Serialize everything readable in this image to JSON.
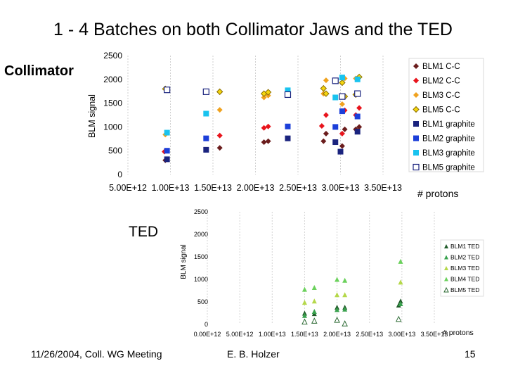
{
  "slide": {
    "title": "1 - 4 Batches on both Collimator Jaws and the TED",
    "collimator_label": "Collimator",
    "ted_label": "TED",
    "footer": {
      "date": "11/26/2004, Coll. WG Meeting",
      "author": "E. B. Holzer",
      "page": "15"
    }
  },
  "colors": {
    "dark_red": "#6b1d1d",
    "red": "#e8141c",
    "orange": "#f0a21e",
    "yellow": "#f5d60f",
    "navy": "#1a237e",
    "blue": "#1c3fd9",
    "cyan": "#19c3ef",
    "white": "#ffffff",
    "ted_dark": "#215c2a",
    "ted_mid": "#38a14d",
    "ted_light": "#b5d84a",
    "ted_bright": "#6bd15c",
    "ted_pale": "#a6bfa0"
  },
  "chart_data": [
    {
      "type": "scatter",
      "title": "",
      "xlabel": "# protons",
      "ylabel": "BLM signal",
      "xlim": [
        5000000000000.0,
        35000000000000.0
      ],
      "ylim": [
        0,
        2500
      ],
      "x_ticks": [
        "5.00E+12",
        "1.00E+13",
        "1.50E+13",
        "2.00E+13",
        "2.50E+13",
        "3.00E+13",
        "3.50E+13"
      ],
      "y_ticks": [
        "0",
        "500",
        "1000",
        "1500",
        "2000",
        "2500"
      ],
      "legend_position": "right",
      "series": [
        {
          "name": "BLM1 C-C",
          "marker": "diamond",
          "color": "#6b1d1d",
          "points": [
            [
              9400000000000.0,
              300
            ],
            [
              15800000000000.0,
              560
            ],
            [
              21000000000000.0,
              680
            ],
            [
              21500000000000.0,
              700
            ],
            [
              28000000000000.0,
              700
            ],
            [
              28300000000000.0,
              860
            ],
            [
              30200000000000.0,
              600
            ],
            [
              30500000000000.0,
              950
            ],
            [
              31800000000000.0,
              950
            ],
            [
              32200000000000.0,
              1000
            ]
          ]
        },
        {
          "name": "BLM2 C-C",
          "marker": "diamond",
          "color": "#e8141c",
          "points": [
            [
              9300000000000.0,
              480
            ],
            [
              15800000000000.0,
              820
            ],
            [
              21000000000000.0,
              980
            ],
            [
              21500000000000.0,
              1010
            ],
            [
              27800000000000.0,
              1020
            ],
            [
              28300000000000.0,
              1250
            ],
            [
              30200000000000.0,
              860
            ],
            [
              30500000000000.0,
              1350
            ],
            [
              31800000000000.0,
              1250
            ],
            [
              32200000000000.0,
              1400
            ]
          ]
        },
        {
          "name": "BLM3 C-C",
          "marker": "diamond",
          "color": "#f0a21e",
          "points": [
            [
              9400000000000.0,
              840
            ],
            [
              15800000000000.0,
              1360
            ],
            [
              21000000000000.0,
              1620
            ],
            [
              21500000000000.0,
              1660
            ],
            [
              28000000000000.0,
              1700
            ],
            [
              28300000000000.0,
              1980
            ],
            [
              30200000000000.0,
              1480
            ],
            [
              30500000000000.0,
              2020
            ],
            [
              31800000000000.0,
              2020
            ],
            [
              32200000000000.0,
              2050
            ]
          ]
        },
        {
          "name": "BLM5 C-C",
          "marker": "diamond-outline",
          "color": "#f5d60f",
          "points": [
            [
              9400000000000.0,
              1800
            ],
            [
              15800000000000.0,
              1740
            ],
            [
              21000000000000.0,
              1700
            ],
            [
              21500000000000.0,
              1730
            ],
            [
              28000000000000.0,
              1810
            ],
            [
              28300000000000.0,
              1700
            ],
            [
              30200000000000.0,
              1930
            ],
            [
              30500000000000.0,
              1640
            ],
            [
              31800000000000.0,
              1680
            ],
            [
              32200000000000.0,
              2050
            ]
          ]
        }
      ]
    },
    {
      "type": "scatter",
      "title": "",
      "xlabel": "",
      "ylabel": "",
      "xlim": [
        5000000000000.0,
        35000000000000.0
      ],
      "ylim": [
        0,
        2500
      ],
      "legend_position": "right",
      "series": [
        {
          "name": "BLM1 graphite",
          "marker": "square",
          "color": "#1a237e",
          "points": [
            [
              9600000000000.0,
              320
            ],
            [
              14200000000000.0,
              520
            ],
            [
              23800000000000.0,
              760
            ],
            [
              29400000000000.0,
              680
            ],
            [
              30000000000000.0,
              480
            ],
            [
              32000000000000.0,
              900
            ]
          ]
        },
        {
          "name": "BLM2 graphite",
          "marker": "square",
          "color": "#1c3fd9",
          "points": [
            [
              9600000000000.0,
              500
            ],
            [
              14200000000000.0,
              760
            ],
            [
              23800000000000.0,
              1010
            ],
            [
              29400000000000.0,
              1000
            ],
            [
              30200000000000.0,
              1330
            ],
            [
              32000000000000.0,
              1220
            ]
          ]
        },
        {
          "name": "BLM3 graphite",
          "marker": "square",
          "color": "#19c3ef",
          "points": [
            [
              9600000000000.0,
              880
            ],
            [
              14200000000000.0,
              1280
            ],
            [
              23800000000000.0,
              1770
            ],
            [
              29400000000000.0,
              1620
            ],
            [
              30200000000000.0,
              2040
            ],
            [
              32000000000000.0,
              2000
            ]
          ]
        },
        {
          "name": "BLM5 graphite",
          "marker": "square-outline",
          "color": "#1a237e",
          "points": [
            [
              9600000000000.0,
              1780
            ],
            [
              14200000000000.0,
              1740
            ],
            [
              23800000000000.0,
              1680
            ],
            [
              29400000000000.0,
              1970
            ],
            [
              30200000000000.0,
              1640
            ],
            [
              32000000000000.0,
              1700
            ]
          ]
        }
      ]
    },
    {
      "type": "scatter",
      "title": "",
      "xlabel": "# protons",
      "ylabel": "BLM signal",
      "xlim": [
        0,
        35000000000000.0
      ],
      "ylim": [
        0,
        2500
      ],
      "x_ticks": [
        "0.00E+00",
        "5.00E+12",
        "1.00E+13",
        "1.50E+13",
        "2.00E+13",
        "2.50E+13",
        "3.00E+13",
        "3.50E+13"
      ],
      "x_tick_labels": [
        "0.00E+12",
        "5.00E+12",
        "1.00E+13",
        "1.50E+13",
        "2.00E+13",
        "2.50E+13",
        "3.00E+13",
        "3.50E+13"
      ],
      "y_ticks": [
        "0",
        "500",
        "1000",
        "1500",
        "2000",
        "2500"
      ],
      "legend_position": "right",
      "series": [
        {
          "name": "BLM1 TED",
          "marker": "triangle",
          "color": "#215c2a",
          "points": [
            [
              15000000000000.0,
              250
            ],
            [
              16500000000000.0,
              240
            ],
            [
              20000000000000.0,
              380
            ],
            [
              21200000000000.0,
              380
            ],
            [
              29500000000000.0,
              430
            ],
            [
              29800000000000.0,
              520
            ]
          ]
        },
        {
          "name": "BLM2 TED",
          "marker": "triangle",
          "color": "#38a14d",
          "points": [
            [
              15000000000000.0,
              200
            ],
            [
              16500000000000.0,
              290
            ],
            [
              20000000000000.0,
              330
            ],
            [
              21200000000000.0,
              340
            ],
            [
              29800000000000.0,
              460
            ]
          ]
        },
        {
          "name": "BLM3 TED",
          "marker": "triangle",
          "color": "#b5d84a",
          "points": [
            [
              15000000000000.0,
              490
            ],
            [
              16500000000000.0,
              520
            ],
            [
              20000000000000.0,
              660
            ],
            [
              21200000000000.0,
              660
            ],
            [
              29800000000000.0,
              940
            ]
          ]
        },
        {
          "name": "BLM4 TED",
          "marker": "triangle",
          "color": "#6bd15c",
          "points": [
            [
              15000000000000.0,
              780
            ],
            [
              16500000000000.0,
              820
            ],
            [
              20000000000000.0,
              1000
            ],
            [
              21200000000000.0,
              980
            ],
            [
              29800000000000.0,
              1400
            ]
          ]
        },
        {
          "name": "BLM5 TED",
          "marker": "triangle-outline",
          "color": "#a6bfa0",
          "points": [
            [
              15000000000000.0,
              60
            ],
            [
              16500000000000.0,
              80
            ],
            [
              20000000000000.0,
              100
            ],
            [
              21200000000000.0,
              20
            ],
            [
              29500000000000.0,
              120
            ]
          ]
        }
      ]
    }
  ]
}
